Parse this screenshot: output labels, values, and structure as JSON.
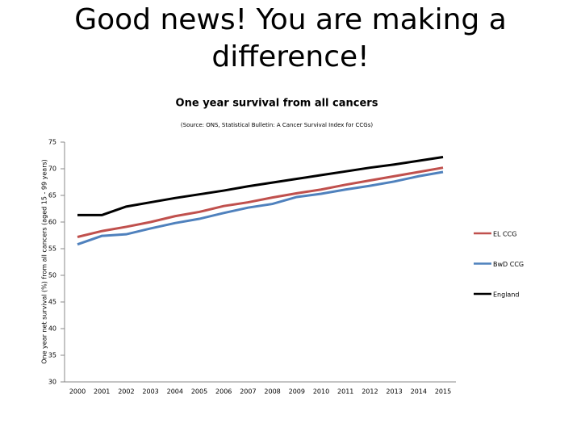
{
  "slide_title": "Good news! You are making a difference!",
  "chart_data": {
    "type": "line",
    "title": "One year survival from all cancers",
    "subtitle": "(Source: ONS, Statistical Bulletin: A Cancer Survival Index for CCGs)",
    "y_label": "One year net survival (%) from all cancers (aged 15 - 99 years)",
    "categories": [
      "2000",
      "2001",
      "2002",
      "2003",
      "2004",
      "2005",
      "2006",
      "2007",
      "2008",
      "2009",
      "2010",
      "2011",
      "2012",
      "2013",
      "2014",
      "2015"
    ],
    "series": [
      {
        "name": "EL CCG",
        "color": "#c0504d",
        "values": [
          57.2,
          58.3,
          59.1,
          60.0,
          61.1,
          61.9,
          63.0,
          63.7,
          64.6,
          65.4,
          66.1,
          67.0,
          67.8,
          68.6,
          69.4,
          70.2
        ]
      },
      {
        "name": "BwD CCG",
        "color": "#4f81bd",
        "values": [
          55.8,
          57.4,
          57.7,
          58.8,
          59.8,
          60.6,
          61.7,
          62.7,
          63.4,
          64.7,
          65.3,
          66.1,
          66.8,
          67.6,
          68.6,
          69.4
        ]
      },
      {
        "name": "England",
        "color": "#000000",
        "values": [
          61.3,
          61.3,
          62.9,
          63.7,
          64.5,
          65.2,
          65.9,
          66.7,
          67.4,
          68.1,
          68.8,
          69.5,
          70.2,
          70.8,
          71.5,
          72.2
        ]
      }
    ],
    "ylim": [
      30,
      75
    ],
    "yticks": [
      30,
      35,
      40,
      45,
      50,
      55,
      60,
      65,
      70,
      75
    ],
    "grid": false,
    "legend": "right"
  }
}
